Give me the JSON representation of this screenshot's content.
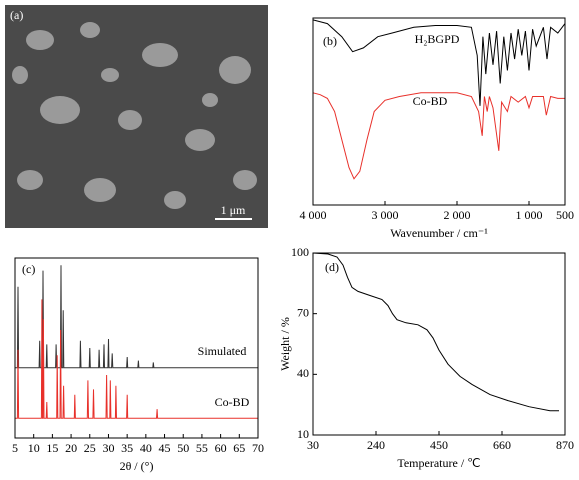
{
  "panel_a": {
    "label": "(a)",
    "scale_bar": "1 μm"
  },
  "chart_data": [
    {
      "type": "line",
      "panel_label": "(b)",
      "xlabel": "Wavenumber / cm⁻¹",
      "xlim": [
        4000,
        500
      ],
      "ylim": [
        0,
        100
      ],
      "xticks": [
        {
          "value": 4000,
          "label": "4 000"
        },
        {
          "value": 3000,
          "label": "3 000"
        },
        {
          "value": 2000,
          "label": "2 000"
        },
        {
          "value": 1000,
          "label": "1 000"
        },
        500
      ],
      "series": [
        {
          "name": "H₂BGPD",
          "color": "#000000",
          "x": [
            4000,
            3800,
            3600,
            3450,
            3300,
            3100,
            2900,
            2600,
            2300,
            2000,
            1800,
            1720,
            1680,
            1640,
            1600,
            1550,
            1500,
            1450,
            1400,
            1350,
            1300,
            1250,
            1200,
            1150,
            1100,
            1050,
            1000,
            950,
            900,
            800,
            750,
            700,
            600,
            500
          ],
          "values": [
            99,
            97,
            90,
            82,
            84,
            90,
            92,
            95,
            96,
            96,
            95,
            80,
            53,
            90,
            70,
            92,
            75,
            93,
            65,
            90,
            72,
            92,
            78,
            94,
            80,
            93,
            72,
            94,
            85,
            95,
            78,
            95,
            92,
            97
          ]
        },
        {
          "name": "Co-BD",
          "color": "#e8302a",
          "x": [
            4000,
            3900,
            3800,
            3700,
            3600,
            3500,
            3430,
            3350,
            3250,
            3150,
            3000,
            2800,
            2500,
            2200,
            2000,
            1800,
            1700,
            1650,
            1620,
            1580,
            1550,
            1500,
            1420,
            1380,
            1300,
            1250,
            1150,
            1050,
            1000,
            950,
            800,
            760,
            700,
            600,
            500
          ],
          "values": [
            60,
            59,
            57,
            50,
            35,
            20,
            14,
            18,
            35,
            50,
            56,
            58,
            60,
            60,
            60,
            58,
            50,
            37,
            58,
            50,
            58,
            52,
            29,
            55,
            50,
            58,
            55,
            58,
            52,
            58,
            58,
            48,
            58,
            57,
            57
          ]
        }
      ]
    },
    {
      "type": "line",
      "panel_label": "(c)",
      "xlabel": "2θ / (°)",
      "xlim": [
        5,
        70
      ],
      "ylim": [
        0,
        100
      ],
      "xticks": [
        5,
        10,
        15,
        20,
        25,
        30,
        35,
        40,
        45,
        50,
        55,
        60,
        65,
        70
      ],
      "series": [
        {
          "name": "Simulated",
          "color": "#333333",
          "x": [
            5,
            5.65,
            5.8,
            5.95,
            11.45,
            11.6,
            11.75,
            12.35,
            12.5,
            12.65,
            13.35,
            13.5,
            13.65,
            15.85,
            16,
            16.15,
            17.15,
            17.3,
            17.45,
            17.75,
            17.9,
            18.05,
            22.35,
            22.5,
            22.65,
            24.85,
            25,
            25.15,
            27.35,
            27.5,
            27.65,
            28.65,
            28.8,
            28.95,
            29.85,
            30,
            30.15,
            30.85,
            31,
            31.15,
            34.85,
            35,
            35.15,
            37.85,
            38,
            38.15,
            41.85,
            42,
            42.15,
            70
          ],
          "values": [
            39,
            39,
            84,
            39,
            39,
            54,
            39,
            39,
            93,
            39,
            39,
            52,
            39,
            39,
            52,
            39,
            39,
            96,
            39,
            39,
            71,
            39,
            39,
            54,
            39,
            39,
            50,
            39,
            39,
            49,
            39,
            39,
            52,
            39,
            39,
            55,
            39,
            39,
            47,
            39,
            39,
            45,
            39,
            39,
            43,
            39,
            39,
            42,
            39,
            39
          ]
        },
        {
          "name": "Co-BD",
          "color": "#e8302a",
          "x": [
            5,
            5.65,
            5.8,
            5.95,
            12.05,
            12.2,
            12.35,
            12.45,
            12.6,
            12.75,
            13.35,
            13.5,
            13.65,
            16.15,
            16.3,
            16.45,
            17.05,
            17.2,
            17.35,
            17.85,
            18,
            18.15,
            20.85,
            21,
            21.15,
            24.35,
            24.5,
            24.65,
            25.85,
            26,
            26.15,
            29.35,
            29.5,
            29.65,
            30.35,
            30.5,
            30.65,
            31.85,
            32,
            32.15,
            34.85,
            35,
            35.15,
            42.85,
            43,
            43.15,
            70
          ],
          "values": [
            11,
            11,
            49,
            11,
            11,
            77,
            11,
            11,
            66,
            11,
            11,
            20,
            11,
            11,
            46,
            11,
            11,
            60,
            11,
            11,
            29,
            11,
            11,
            24,
            11,
            11,
            32,
            11,
            11,
            27,
            11,
            11,
            35,
            11,
            11,
            32,
            11,
            11,
            29,
            11,
            11,
            24,
            11,
            11,
            16,
            11,
            11
          ]
        }
      ]
    },
    {
      "type": "line",
      "panel_label": "(d)",
      "xlabel": "Temperature / ℃",
      "ylabel": "Weight / %",
      "xlim": [
        30,
        870
      ],
      "ylim": [
        10,
        100
      ],
      "xticks": [
        30,
        240,
        450,
        660,
        870
      ],
      "yticks": [
        10,
        40,
        70,
        100
      ],
      "series": [
        {
          "name": null,
          "color": "#000000",
          "x": [
            30,
            80,
            110,
            130,
            145,
            160,
            180,
            220,
            260,
            280,
            295,
            310,
            340,
            380,
            410,
            430,
            450,
            480,
            520,
            560,
            620,
            680,
            750,
            820,
            850
          ],
          "values": [
            100,
            99.5,
            98,
            94,
            88,
            83,
            81,
            79,
            77,
            74,
            70,
            67,
            65.5,
            64.5,
            62,
            58,
            52,
            45,
            39,
            35,
            30,
            27,
            24,
            22,
            22
          ]
        }
      ]
    }
  ]
}
